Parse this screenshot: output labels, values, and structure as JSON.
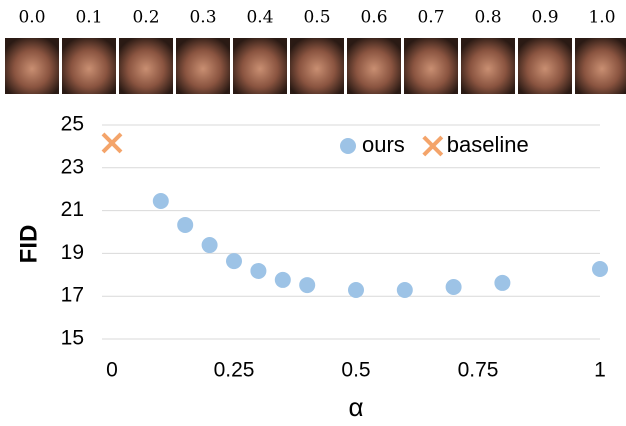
{
  "image_strip": {
    "labels": [
      "0.0",
      "0.1",
      "0.2",
      "0.3",
      "0.4",
      "0.5",
      "0.6",
      "0.7",
      "0.8",
      "0.9",
      "1.0"
    ]
  },
  "chart_data": {
    "type": "scatter",
    "x_label": "α",
    "y_label": "FID",
    "xlim": [
      0,
      1
    ],
    "ylim": [
      15,
      25
    ],
    "xticks": [
      0,
      0.25,
      0.5,
      0.75,
      1
    ],
    "yticks": [
      15,
      17,
      19,
      21,
      23,
      25
    ],
    "grid": true,
    "legend": "upper right",
    "series": [
      {
        "name": "ours",
        "color": "#9dc3e6",
        "marker": "circle",
        "x": [
          0.1,
          0.15,
          0.2,
          0.25,
          0.3,
          0.35,
          0.4,
          0.5,
          0.6,
          0.7,
          0.8,
          1
        ],
        "values": [
          21.45,
          20.33,
          19.39,
          18.64,
          18.18,
          17.76,
          17.52,
          17.29,
          17.29,
          17.43,
          17.62,
          18.27
        ]
      },
      {
        "name": "baseline",
        "color": "#f4a46a",
        "marker": "x",
        "x": [
          0
        ],
        "values": [
          24.16
        ]
      }
    ]
  }
}
